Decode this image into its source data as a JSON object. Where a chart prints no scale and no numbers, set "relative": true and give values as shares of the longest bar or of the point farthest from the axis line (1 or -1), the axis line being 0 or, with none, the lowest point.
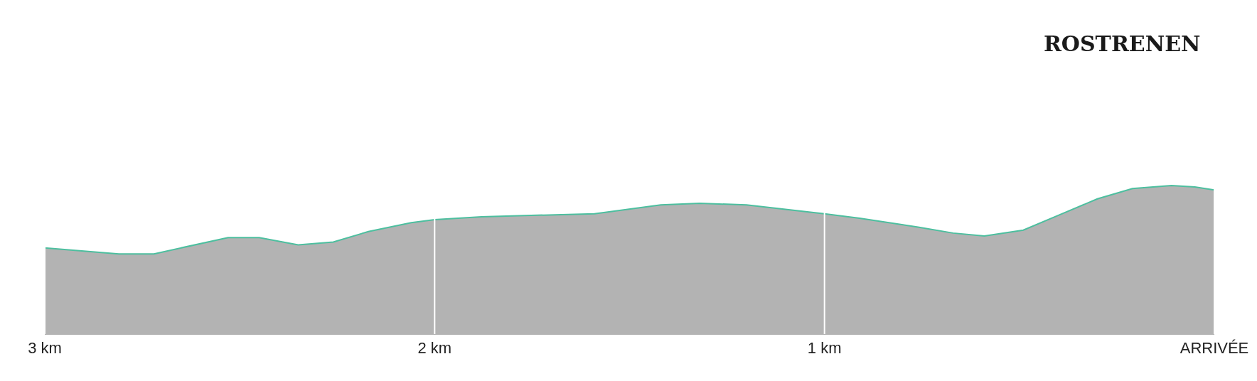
{
  "chart_data": {
    "type": "area",
    "relative": true,
    "title": "ROSTRENEN",
    "x": [
      3.0,
      2.81,
      2.72,
      2.53,
      2.45,
      2.35,
      2.26,
      2.17,
      2.06,
      2.0,
      1.88,
      1.59,
      1.42,
      1.32,
      1.2,
      1.0,
      0.91,
      0.76,
      0.67,
      0.59,
      0.49,
      0.4,
      0.3,
      0.21,
      0.11,
      0.05,
      0.0
    ],
    "series": [
      {
        "color": "#4dbf9f",
        "values": [
          0.58,
          0.54,
          0.54,
          0.65,
          0.65,
          0.6,
          0.62,
          0.69,
          0.75,
          0.77,
          0.79,
          0.81,
          0.87,
          0.88,
          0.87,
          0.81,
          0.78,
          0.72,
          0.68,
          0.66,
          0.7,
          0.8,
          0.91,
          0.98,
          1.0,
          0.99,
          0.97
        ]
      }
    ],
    "xlim": [
      3,
      0
    ],
    "xticks": [
      {
        "value": 3,
        "label": "3 km"
      },
      {
        "value": 2,
        "label": "2 km"
      },
      {
        "value": 1,
        "label": "1 km"
      },
      {
        "value": 0,
        "label": "ARRIVÉE"
      }
    ],
    "grid": "x",
    "legend": false,
    "marker": "none",
    "line_style": "solid"
  }
}
